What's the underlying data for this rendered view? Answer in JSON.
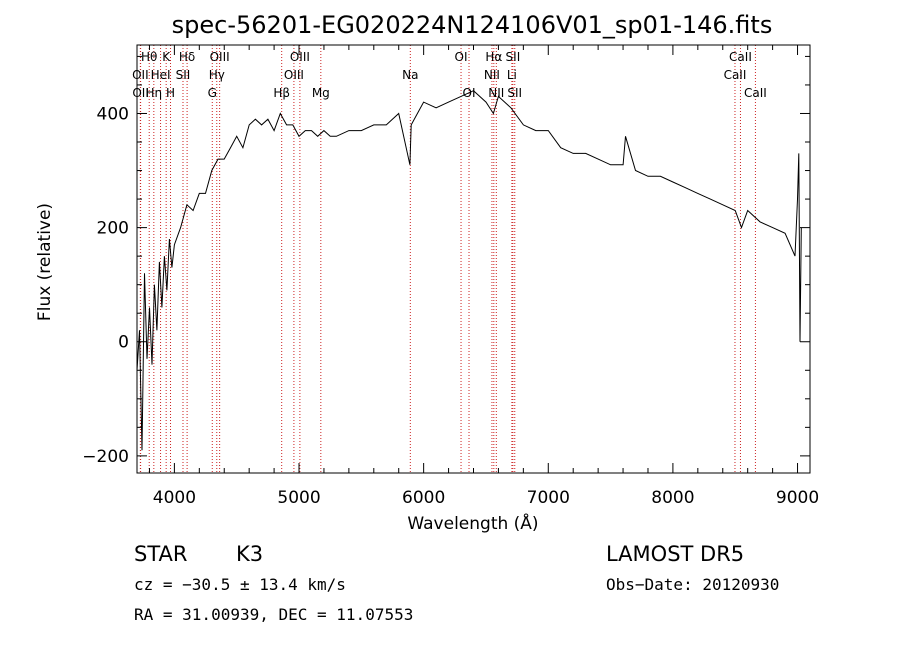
{
  "chart_data": {
    "type": "line",
    "title": "spec-56201-EG020224N124106V01_sp01-146.fits",
    "xlabel": "Wavelength (Å)",
    "ylabel": "Flux (relative)",
    "xlim": [
      3700,
      9100
    ],
    "ylim": [
      -230,
      520
    ],
    "x_ticks": [
      4000,
      5000,
      6000,
      7000,
      8000,
      9000
    ],
    "y_ticks": [
      -200,
      0,
      200,
      400
    ],
    "x_tick_labels": [
      "4000",
      "5000",
      "6000",
      "7000",
      "8000",
      "9000"
    ],
    "y_tick_labels": [
      "−200",
      "0",
      "200",
      "400"
    ],
    "grid": false,
    "series": [
      {
        "name": "",
        "color": "#000000",
        "x": [
          3700,
          3720,
          3740,
          3760,
          3780,
          3800,
          3820,
          3840,
          3860,
          3880,
          3900,
          3920,
          3940,
          3960,
          3980,
          4000,
          4050,
          4100,
          4150,
          4200,
          4250,
          4300,
          4350,
          4400,
          4450,
          4500,
          4550,
          4600,
          4650,
          4700,
          4750,
          4800,
          4850,
          4900,
          4950,
          5000,
          5050,
          5100,
          5150,
          5200,
          5250,
          5300,
          5400,
          5500,
          5600,
          5700,
          5800,
          5890,
          5900,
          6000,
          6100,
          6200,
          6300,
          6400,
          6500,
          6560,
          6600,
          6700,
          6800,
          6900,
          7000,
          7100,
          7200,
          7300,
          7400,
          7500,
          7600,
          7620,
          7700,
          7800,
          7900,
          8000,
          8100,
          8200,
          8300,
          8400,
          8500,
          8550,
          8600,
          8700,
          8800,
          8900,
          8980,
          9000,
          9010,
          9020,
          9030
        ],
        "y": [
          -50,
          20,
          -190,
          120,
          -30,
          60,
          -40,
          100,
          20,
          140,
          60,
          150,
          90,
          180,
          130,
          170,
          200,
          240,
          230,
          260,
          260,
          300,
          320,
          320,
          340,
          360,
          340,
          380,
          390,
          380,
          390,
          370,
          400,
          380,
          380,
          360,
          370,
          370,
          360,
          370,
          360,
          360,
          370,
          370,
          380,
          380,
          400,
          310,
          380,
          420,
          410,
          420,
          430,
          440,
          420,
          400,
          430,
          410,
          380,
          370,
          370,
          340,
          330,
          330,
          320,
          310,
          310,
          360,
          300,
          290,
          290,
          280,
          270,
          260,
          250,
          240,
          230,
          200,
          230,
          210,
          200,
          190,
          150,
          250,
          330,
          0,
          200
        ]
      }
    ],
    "emission_lines": [
      {
        "label": "Hθ",
        "x": 3798,
        "row": 1
      },
      {
        "label": "OII",
        "x": 3727,
        "row": 2
      },
      {
        "label": "OII",
        "x": 3729,
        "row": 3
      },
      {
        "label": "Hη",
        "x": 3835,
        "row": 3
      },
      {
        "label": "HeI",
        "x": 3889,
        "row": 2
      },
      {
        "label": "K",
        "x": 3934,
        "row": 1
      },
      {
        "label": "H",
        "x": 3969,
        "row": 3
      },
      {
        "label": "Hδ",
        "x": 4102,
        "row": 1
      },
      {
        "label": "SII",
        "x": 4069,
        "row": 2
      },
      {
        "label": "OIII",
        "x": 4363,
        "row": 1
      },
      {
        "label": "Hγ",
        "x": 4340,
        "row": 2
      },
      {
        "label": "G",
        "x": 4304,
        "row": 3
      },
      {
        "label": "Hβ",
        "x": 4861,
        "row": 3
      },
      {
        "label": "OIII",
        "x": 4959,
        "row": 2
      },
      {
        "label": "OIII",
        "x": 5007,
        "row": 1
      },
      {
        "label": "Mg",
        "x": 5175,
        "row": 3
      },
      {
        "label": "Na",
        "x": 5893,
        "row": 2
      },
      {
        "label": "OI",
        "x": 6300,
        "row": 1
      },
      {
        "label": "OI",
        "x": 6364,
        "row": 3
      },
      {
        "label": "NII",
        "x": 6548,
        "row": 2
      },
      {
        "label": "Hα",
        "x": 6563,
        "row": 1
      },
      {
        "label": "NII",
        "x": 6583,
        "row": 3
      },
      {
        "label": "Li",
        "x": 6708,
        "row": 2
      },
      {
        "label": "SII",
        "x": 6716,
        "row": 1
      },
      {
        "label": "SII",
        "x": 6731,
        "row": 3
      },
      {
        "label": "CaII",
        "x": 8498,
        "row": 2
      },
      {
        "label": "CaII",
        "x": 8542,
        "row": 1
      },
      {
        "label": "CaII",
        "x": 8662,
        "row": 3
      }
    ]
  },
  "info": {
    "class_text": "STAR",
    "subclass_text": "K3",
    "survey_text": "LAMOST DR5",
    "cz_text": "cz = −30.5 ± 13.4 km/s",
    "obs_date_text": "Obs−Date: 20120930",
    "coords_text": "RA =  31.00939, DEC =  11.07553"
  }
}
